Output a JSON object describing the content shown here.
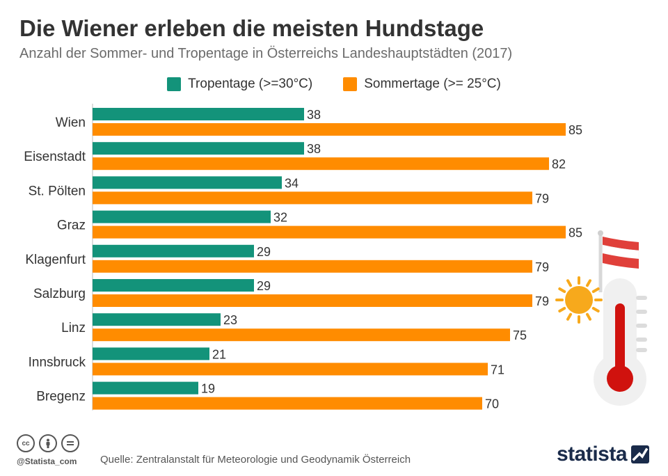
{
  "header": {
    "title": "Die Wiener erleben die meisten Hundstage",
    "subtitle": "Anzahl der Sommer- und Tropentage in Österreichs Landeshauptstädten (2017)"
  },
  "legend": {
    "items": [
      {
        "label": "Tropentage (>=30°C)",
        "color": "#13937a"
      },
      {
        "label": "Sommertage (>= 25°C)",
        "color": "#ff8c00"
      }
    ]
  },
  "chart_data": {
    "type": "bar",
    "orientation": "horizontal",
    "categories": [
      "Wien",
      "Eisenstadt",
      "St. Pölten",
      "Graz",
      "Klagenfurt",
      "Salzburg",
      "Linz",
      "Innsbruck",
      "Bregenz"
    ],
    "series": [
      {
        "name": "Tropentage (>=30°C)",
        "color": "#13937a",
        "values": [
          38,
          38,
          34,
          32,
          29,
          29,
          23,
          21,
          19
        ]
      },
      {
        "name": "Sommertage (>= 25°C)",
        "color": "#ff8c00",
        "values": [
          85,
          82,
          79,
          85,
          79,
          79,
          75,
          71,
          70
        ]
      }
    ],
    "xlim": [
      0,
      100
    ],
    "grid": false,
    "legend_position": "top-center",
    "data_labels": true
  },
  "footer": {
    "source": "Quelle: Zentralanstalt für Meteorologie und Geodynamik Österreich",
    "handle": "@Statista_com",
    "brand": "statista",
    "license_icons": [
      "cc-icon",
      "by-icon",
      "nd-icon"
    ]
  },
  "illustration": {
    "icons": [
      "austrian-flag-icon",
      "sun-icon",
      "thermometer-icon"
    ],
    "colors": {
      "flag_red": "#e0403a",
      "sun": "#f7a91c",
      "thermometer_bulb": "#d0120e"
    }
  }
}
